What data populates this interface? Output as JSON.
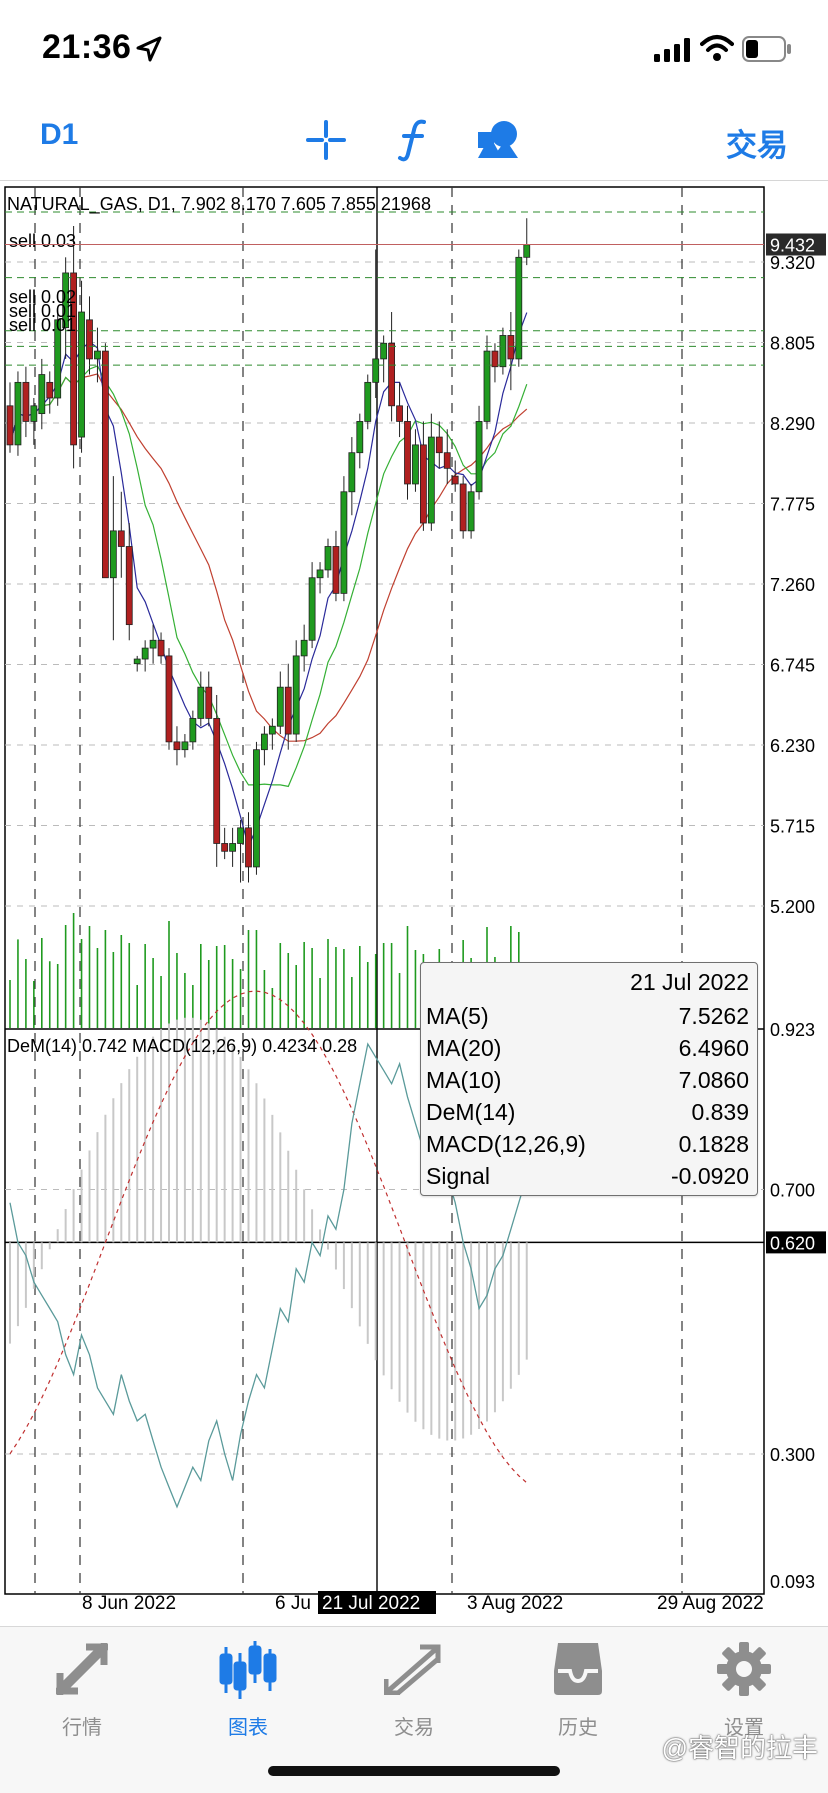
{
  "status_bar": {
    "time": "21:36"
  },
  "toolbar": {
    "timeframe": "D1",
    "trade_label": "交易"
  },
  "chart": {
    "header": "NATURAL_GAS, D1, 7.902 8.170 7.605 7.855 21968",
    "indicator_header": "DeM(14) 0.742 MACD(12,26,9) 0.4234 0.28",
    "order_lines": [
      {
        "label": "sell 0.03",
        "price": 9.22
      },
      {
        "label": "sell 0.02",
        "price": 8.88
      },
      {
        "label": "sell 0.01",
        "price": 8.78
      },
      {
        "label": "sell 0.01",
        "price": 8.66
      }
    ],
    "price_axis": [
      "9.320",
      "8.805",
      "8.290",
      "7.775",
      "7.260",
      "6.745",
      "6.230",
      "5.715",
      "5.200"
    ],
    "indicator_axis": [
      "0.923",
      "0.700",
      "0.300",
      "0.093"
    ],
    "current_price": "9.432",
    "crosshair_value": "0.620",
    "date_labels": [
      "8 Jun 2022",
      "6 Ju",
      "3 Aug 2022",
      "29 Aug 2022"
    ],
    "crosshair_date": "21 Jul 2022",
    "colors": {
      "bull": "#1f9a1f",
      "bear": "#b02020",
      "ma5": "#2a2a9a",
      "ma10": "#35b035",
      "ma20": "#c04030",
      "dem": "#5a9a9a",
      "signal": "#c03030"
    }
  },
  "tooltip": {
    "date": "21 Jul 2022",
    "rows": [
      {
        "name": "MA(5)",
        "value": "7.5262"
      },
      {
        "name": "MA(20)",
        "value": "6.4960"
      },
      {
        "name": "MA(10)",
        "value": "7.0860"
      },
      {
        "name": "DeM(14)",
        "value": "0.839"
      },
      {
        "name": "MACD(12,26,9)",
        "value": "0.1828"
      },
      {
        "name": "Signal",
        "value": "-0.0920"
      }
    ]
  },
  "tabs": [
    {
      "label": "行情",
      "icon": "quotes-icon"
    },
    {
      "label": "图表",
      "icon": "chart-candles-icon",
      "active": true
    },
    {
      "label": "交易",
      "icon": "trade-icon"
    },
    {
      "label": "历史",
      "icon": "history-icon"
    },
    {
      "label": "设置",
      "icon": "settings-gear-icon"
    }
  ],
  "watermark": "@睿智的拉丰"
}
